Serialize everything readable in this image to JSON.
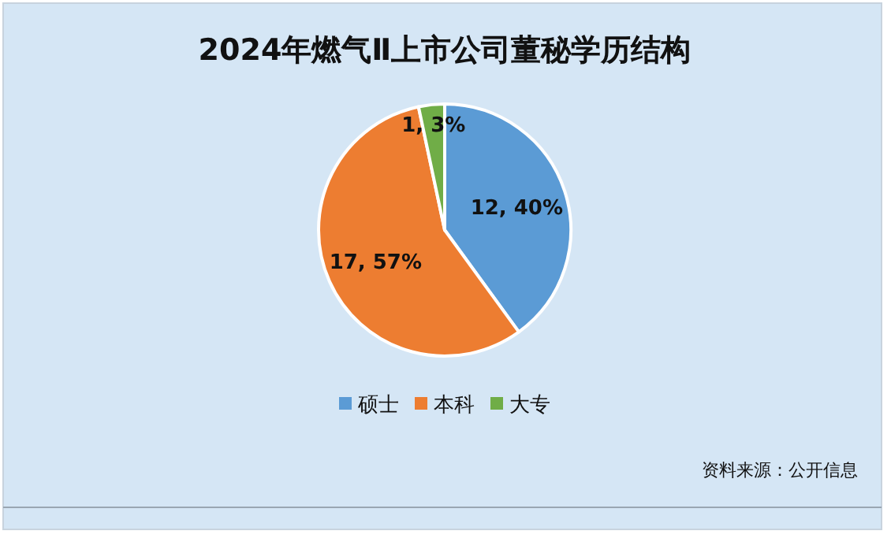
{
  "chart_data": {
    "type": "pie",
    "title": "2024年燃气Ⅱ上市公司董秘学历结构",
    "categories": [
      "硕士",
      "本科",
      "大专"
    ],
    "values": [
      12,
      17,
      1
    ],
    "colors": [
      "#5b9bd5",
      "#ed7d31",
      "#70ad47"
    ],
    "value_labels": [
      "12, 40%",
      "17, 57%",
      "1, 3%"
    ],
    "legend": "bottom",
    "annotations": [
      "资料来源：公开信息"
    ]
  }
}
